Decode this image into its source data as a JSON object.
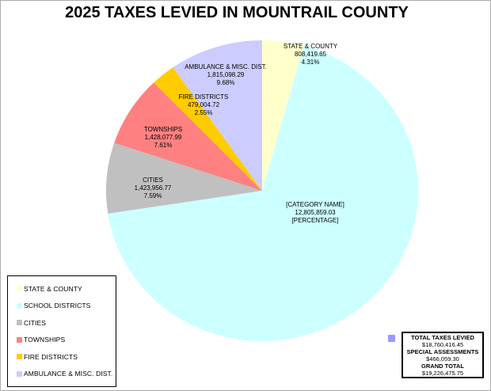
{
  "chart_data": {
    "type": "pie",
    "title": "2025 TAXES LEVIED IN MOUNTRAIL COUNTY",
    "direction": "clockwise",
    "start_angle_deg": 0,
    "legend_position": "bottom-left",
    "slices": [
      {
        "category": "STATE & COUNTY",
        "value": 808419.65,
        "pct": 4.31,
        "color": "#FFFFCC",
        "label": [
          "STATE & COUNTY",
          "808,419.65",
          "4.31%"
        ]
      },
      {
        "category": "SCHOOL DISTRICTS",
        "value": 12805859.03,
        "pct": 68.26,
        "color": "#CCFFFF",
        "label": [
          "[CATEGORY NAME]",
          "12,805,859.03",
          "[PERCENTAGE]"
        ]
      },
      {
        "category": "CITIES",
        "value": 1423956.77,
        "pct": 7.59,
        "color": "#C0C0C0",
        "label": [
          "CITIES",
          "1,423,956.77",
          "7.59%"
        ]
      },
      {
        "category": "TOWNSHIPS",
        "value": 1428077.99,
        "pct": 7.61,
        "color": "#FF8080",
        "label": [
          "TOWNSHIPS",
          "1,428,077.99",
          "7.61%"
        ]
      },
      {
        "category": "FIRE DISTRICTS",
        "value": 479004.72,
        "pct": 2.55,
        "color": "#FFCC00",
        "label": [
          "FIRE DISTRICTS",
          "479,004.72",
          "2.55%"
        ]
      },
      {
        "category": "AMBULANCE & MISC. DIST.",
        "value": 1815098.29,
        "pct": 9.68,
        "color": "#CCCCFF",
        "label": [
          "AMBULANCE & MISC. DIST.",
          "1,815,098.29",
          "9.68%"
        ]
      }
    ]
  },
  "legend": {
    "items": [
      "STATE & COUNTY",
      "SCHOOL DISTRICTS",
      "CITIES",
      "TOWNSHIPS",
      "FIRE DISTRICTS",
      "AMBULANCE & MISC. DIST."
    ]
  },
  "totals_box": {
    "marker_color": "#9999FF",
    "rows": [
      {
        "label": "TOTAL TAXES LEVIED",
        "value": "$18,760,416.45"
      },
      {
        "label": "SPECIAL ASSESSMENTS",
        "value": "$466,059.30"
      },
      {
        "label": "GRAND TOTAL",
        "value": "$19,226,475.75"
      }
    ]
  }
}
